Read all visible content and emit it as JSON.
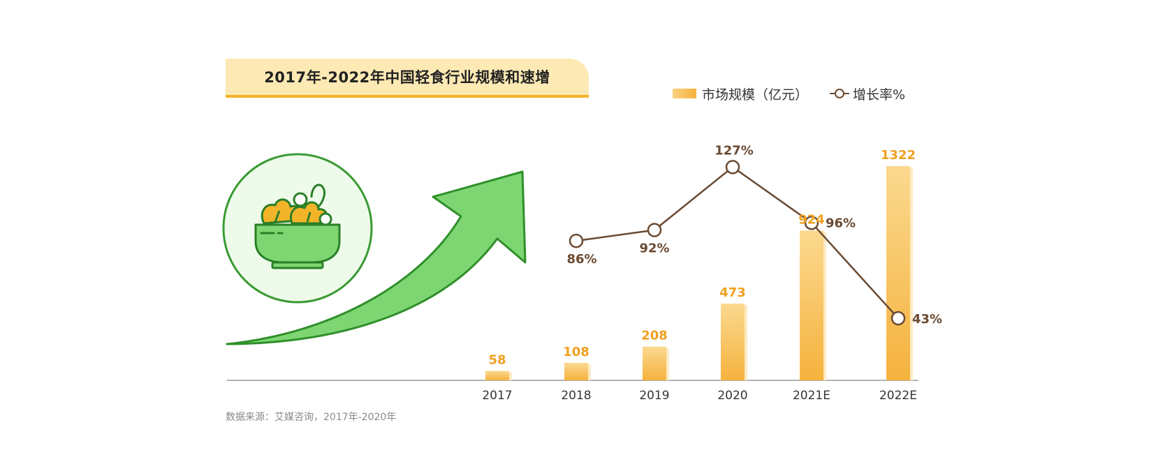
{
  "title": "2017年-2022年中国轻食行业规模和速增",
  "legend": {
    "bar_label": "市场规模（亿元）",
    "line_label": "增长率%"
  },
  "source": "数据来源：艾媒咨询，2017年-2020年",
  "colors": {
    "bar_top": "#fbd98f",
    "bar_bottom": "#f5b23e",
    "bar_value_text": "#f0a020",
    "line": "#6a4a32",
    "arrow_fill": "#7dd672",
    "arrow_stroke": "#2f8f2a",
    "circle_fill": "#eefbea",
    "circle_stroke": "#3a9a33",
    "title_bg": "#fde9b3",
    "title_underline": "#f3b42a"
  },
  "icons": [
    "salad-bowl-icon",
    "growth-arrow-icon"
  ],
  "chart_data": {
    "type": "bar",
    "categories": [
      "2017",
      "2018",
      "2019",
      "2020",
      "2021E",
      "2022E"
    ],
    "series": [
      {
        "name": "市场规模（亿元）",
        "type": "bar",
        "values": [
          58,
          108,
          208,
          473,
          924,
          1322
        ]
      },
      {
        "name": "增长率%",
        "type": "line",
        "values": [
          null,
          86,
          92,
          127,
          96,
          43
        ]
      }
    ],
    "value_labels": [
      "58",
      "108",
      "208",
      "473",
      "924",
      "1322"
    ],
    "rate_labels": [
      "",
      "86%",
      "92%",
      "127%",
      "96%",
      "43%"
    ],
    "ylim": [
      0,
      1400
    ],
    "rate_lim": [
      0,
      140
    ],
    "grid": false,
    "legend_position": "top-right"
  }
}
